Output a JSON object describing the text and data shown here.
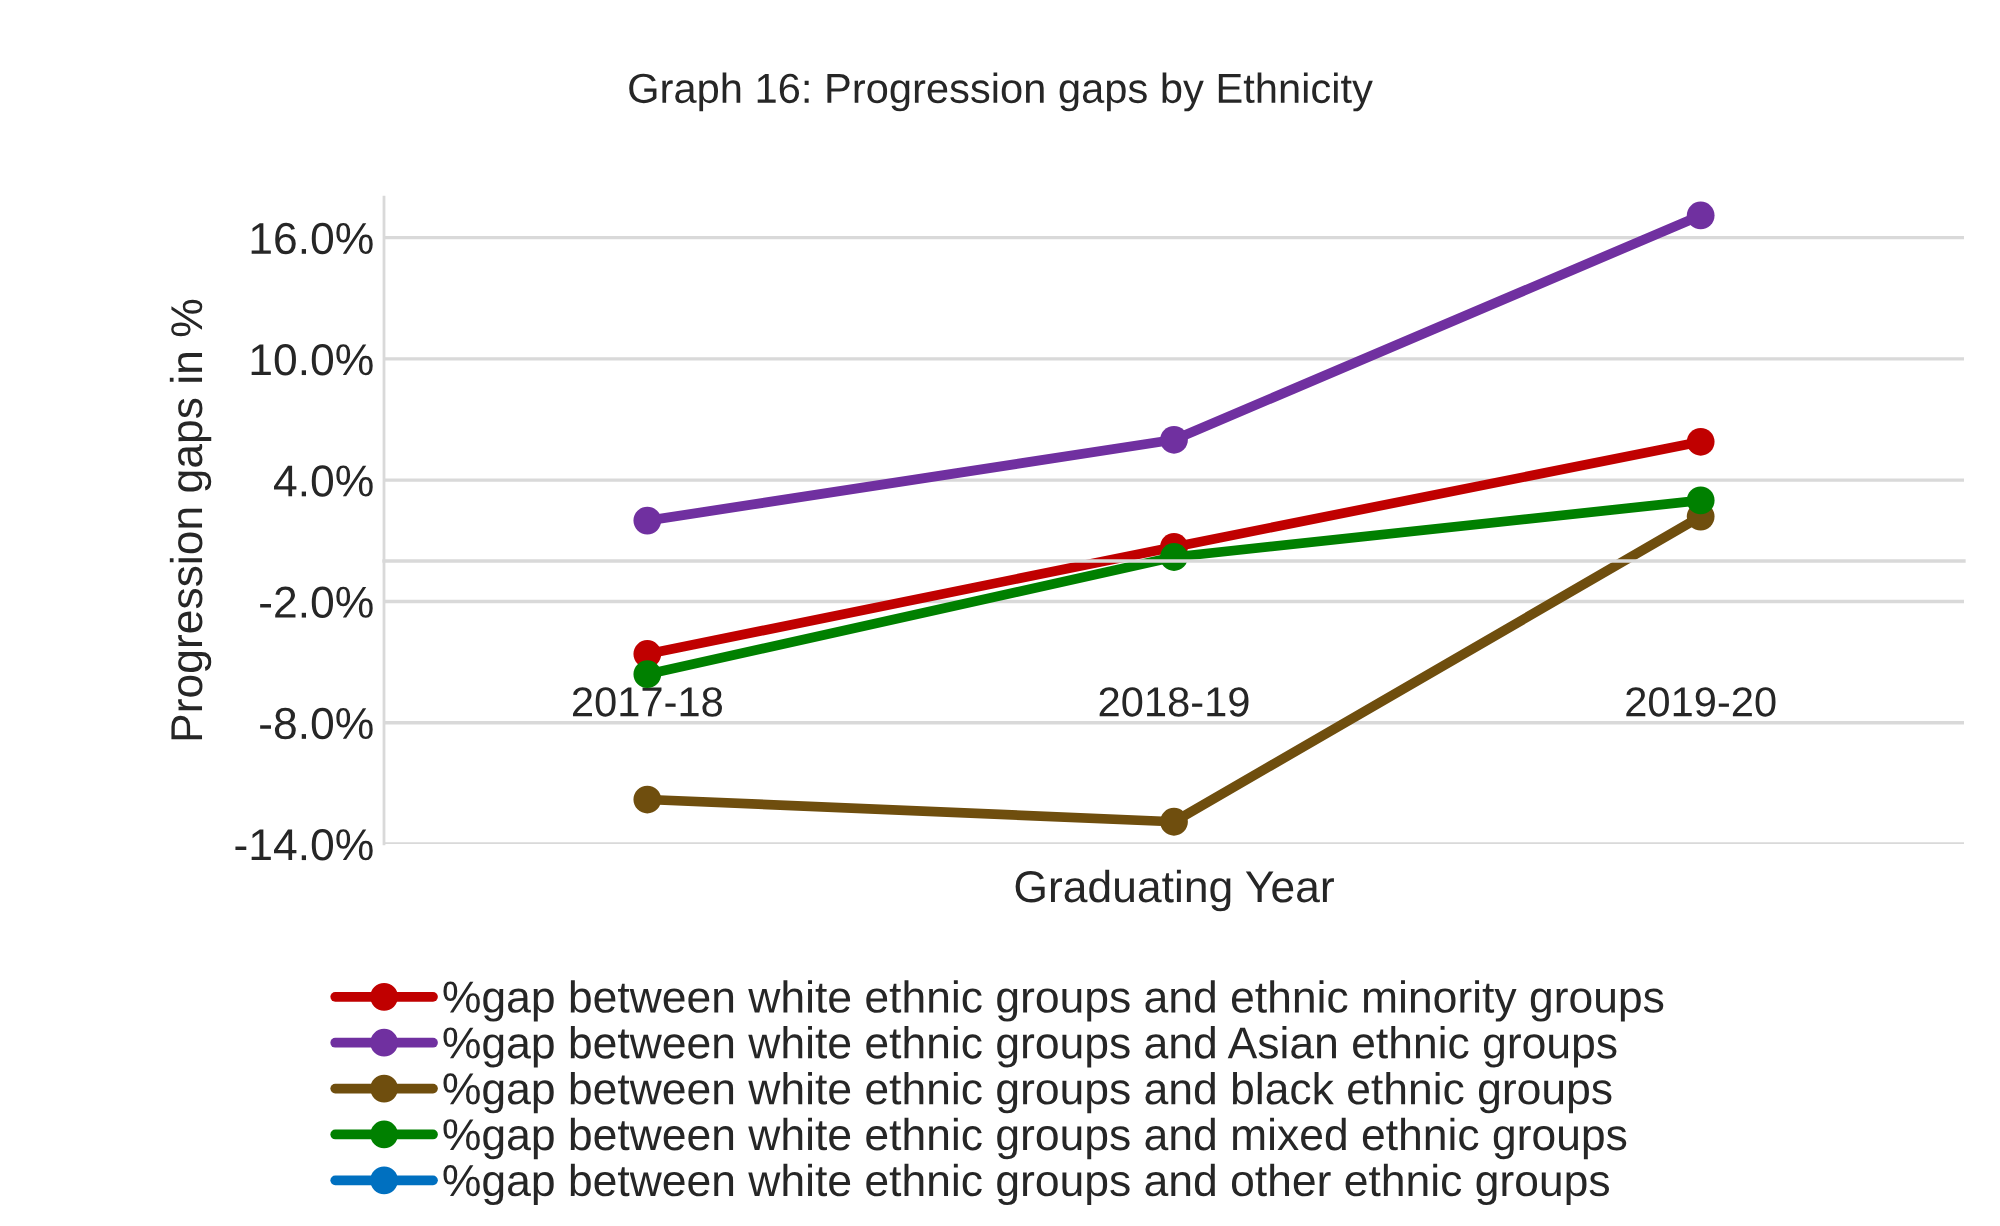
{
  "chart_data": {
    "type": "line",
    "title": "Graph 16: Progression gaps by Ethnicity",
    "xlabel": "Graduating Year",
    "ylabel": "Progression gaps in %",
    "categories": [
      "2017-18",
      "2018-19",
      "2019-20"
    ],
    "series": [
      {
        "name": "%gap between white ethnic groups and ethnic minority groups",
        "color": "#c00000",
        "values": [
          -4.6,
          0.7,
          5.9
        ]
      },
      {
        "name": "%gap between white ethnic groups and Asian ethnic groups",
        "color": "#7030a0",
        "values": [
          2.0,
          6.0,
          17.1
        ]
      },
      {
        "name": "%gap between white ethnic groups and black ethnic groups",
        "color": "#6f4e0e",
        "values": [
          -11.8,
          -12.9,
          2.2
        ]
      },
      {
        "name": "%gap between white ethnic groups and mixed ethnic groups",
        "color": "#008000",
        "values": [
          -5.6,
          0.2,
          3.0
        ]
      },
      {
        "name": "%gap between white ethnic groups and other ethnic groups",
        "color": "#0070c0",
        "values": [
          null,
          null,
          null
        ]
      }
    ],
    "ylim": [
      -14,
      18
    ],
    "yticks": [
      {
        "value": -14,
        "label": "-14.0%"
      },
      {
        "value": -8,
        "label": "-8.0%"
      },
      {
        "value": -2,
        "label": "-2.0%"
      },
      {
        "value": 4,
        "label": "4.0%"
      },
      {
        "value": 10,
        "label": "10.0%"
      },
      {
        "value": 16,
        "label": "16.0%"
      }
    ],
    "grid": "y",
    "legend": "bottom",
    "marker": "circle",
    "line_style": "solid"
  }
}
